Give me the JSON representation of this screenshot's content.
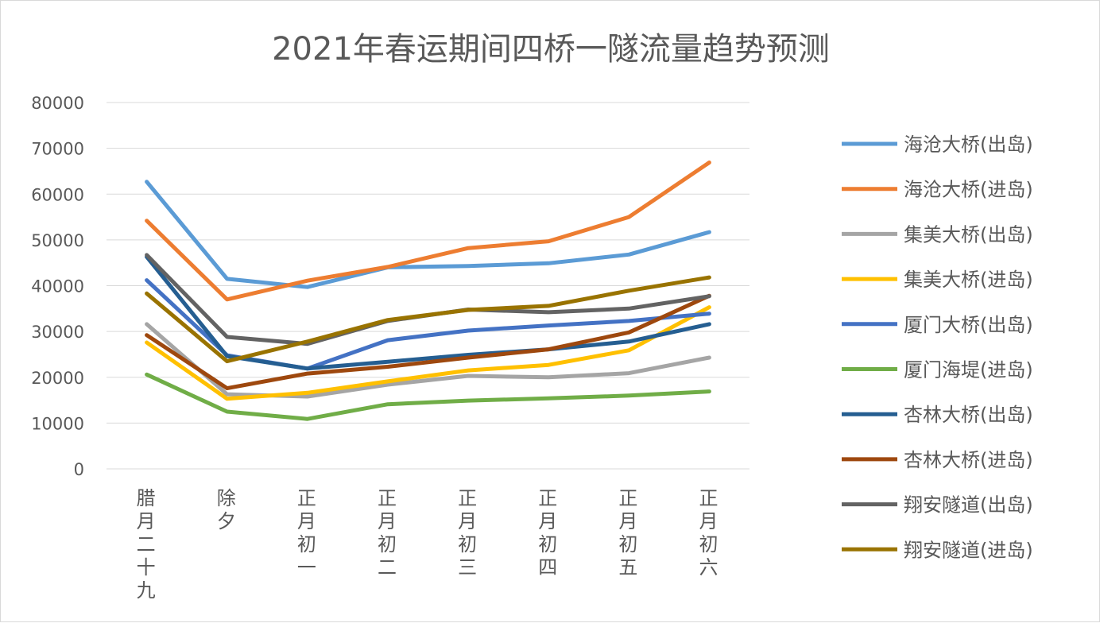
{
  "chart_data": {
    "type": "line",
    "title": "2021年春运期间四桥一隧流量趋势预测",
    "xlabel": "",
    "ylabel": "",
    "categories": [
      "腊月二十九",
      "除夕",
      "正月初一",
      "正月初二",
      "正月初三",
      "正月初四",
      "正月初五",
      "正月初六"
    ],
    "ylim": [
      0,
      80000
    ],
    "yticks": [
      0,
      10000,
      20000,
      30000,
      40000,
      50000,
      60000,
      70000,
      80000
    ],
    "grid": true,
    "legend_position": "right",
    "series": [
      {
        "name": "海沧大桥(出岛)",
        "color": "#5B9BD5",
        "values": [
          62700,
          41500,
          39700,
          44000,
          44300,
          44900,
          46800,
          51700
        ]
      },
      {
        "name": "海沧大桥(进岛)",
        "color": "#ED7D31",
        "values": [
          54200,
          37000,
          41100,
          44100,
          48200,
          49700,
          55000,
          66900
        ]
      },
      {
        "name": "集美大桥(出岛)",
        "color": "#A5A5A5",
        "values": [
          31600,
          16300,
          15800,
          18400,
          20300,
          20000,
          20900,
          24300
        ]
      },
      {
        "name": "集美大桥(进岛)",
        "color": "#FFC000",
        "values": [
          27600,
          15300,
          16600,
          19100,
          21500,
          22700,
          25900,
          35300
        ]
      },
      {
        "name": "厦门大桥(出岛)",
        "color": "#4472C4",
        "values": [
          41200,
          24800,
          21900,
          28100,
          30200,
          31300,
          32300,
          33900
        ]
      },
      {
        "name": "厦门海堤(进岛)",
        "color": "#70AD47",
        "values": [
          20600,
          12500,
          10900,
          14100,
          14900,
          15400,
          16000,
          16900
        ]
      },
      {
        "name": "杏林大桥(出岛)",
        "color": "#255E91",
        "values": [
          46300,
          24600,
          21900,
          23400,
          24900,
          26100,
          27800,
          31600
        ]
      },
      {
        "name": "杏林大桥(进岛)",
        "color": "#9E480E",
        "values": [
          29200,
          17600,
          20800,
          22300,
          24300,
          26100,
          29800,
          37800
        ]
      },
      {
        "name": "翔安隧道(出岛)",
        "color": "#636363",
        "values": [
          46700,
          28800,
          27300,
          32300,
          34800,
          34200,
          35000,
          37700
        ]
      },
      {
        "name": "翔安隧道(进岛)",
        "color": "#997300",
        "values": [
          38300,
          23500,
          27800,
          32500,
          34700,
          35600,
          38900,
          41800
        ]
      }
    ]
  }
}
